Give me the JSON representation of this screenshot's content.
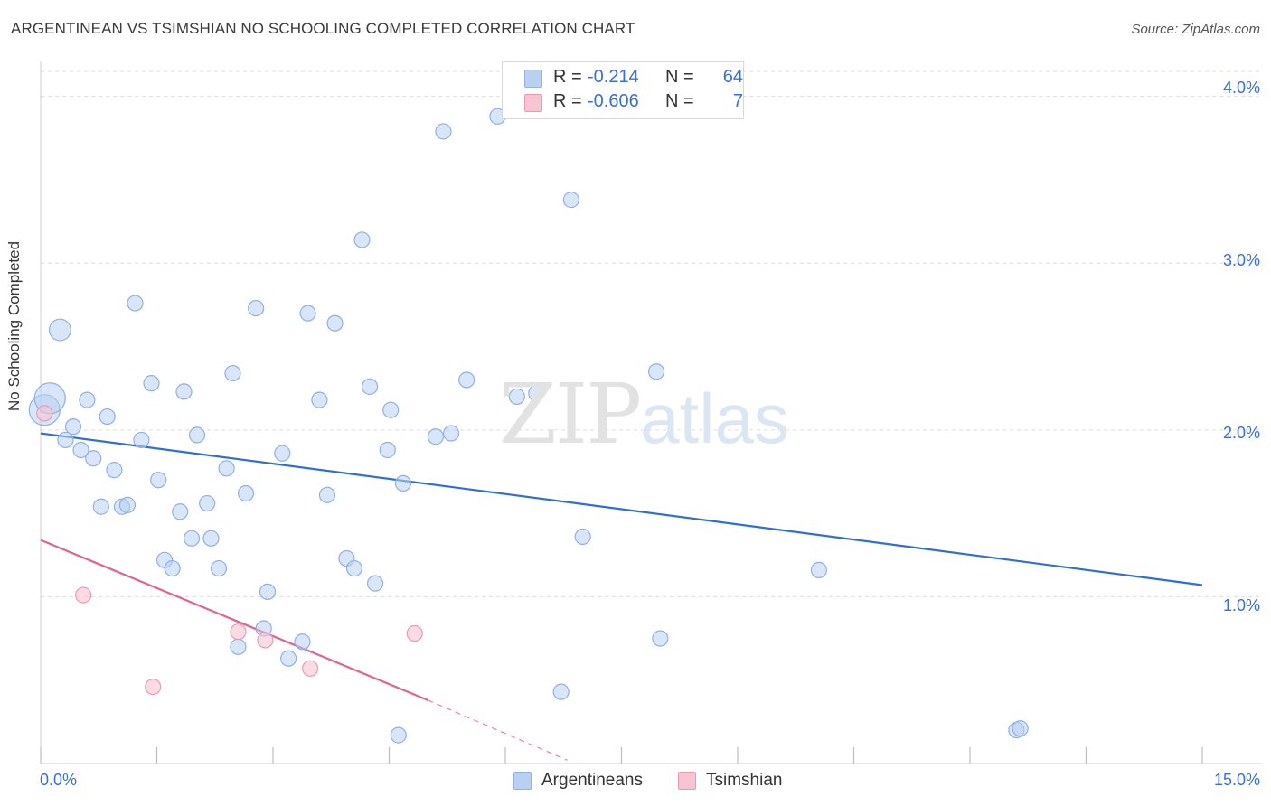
{
  "title": "ARGENTINEAN VS TSIMSHIAN NO SCHOOLING COMPLETED CORRELATION CHART",
  "source": "Source: ZipAtlas.com",
  "watermark": {
    "zip": "ZIP",
    "atlas": "atlas"
  },
  "colors": {
    "blue_fill": "#b9d0f2",
    "blue_stroke": "#8fb1e4",
    "blue_line": "#2e6fd6",
    "pink_fill": "#f8c4d4",
    "pink_stroke": "#ec9ab4",
    "pink_line": "#e0648f",
    "grid": "#dcdcdc",
    "axis_text": "#3a6fd8"
  },
  "legend": {
    "rows": [
      {
        "r_label": "R =",
        "r_value": "-0.214",
        "n_label": "N =",
        "n_value": "64"
      },
      {
        "r_label": "R =",
        "r_value": "-0.606",
        "n_label": "N =",
        "n_value": "7"
      }
    ]
  },
  "bottom_legend": [
    {
      "label": "Argentineans"
    },
    {
      "label": "Tsimshian"
    }
  ],
  "axis": {
    "x_min_label": "0.0%",
    "x_max_label": "15.0%",
    "y_label": "No Schooling Completed",
    "y_tick_labels": [
      "1.0%",
      "2.0%",
      "3.0%",
      "4.0%"
    ]
  },
  "chart_data": {
    "type": "scatter",
    "title": "ARGENTINEAN VS TSIMSHIAN NO SCHOOLING COMPLETED CORRELATION CHART",
    "xlabel": "",
    "ylabel": "No Schooling Completed",
    "xlim": [
      0,
      15
    ],
    "ylim": [
      0,
      4.15
    ],
    "y_ticks": [
      1,
      2,
      3,
      4
    ],
    "series": [
      {
        "name": "Argentineans",
        "r": -0.214,
        "n": 64,
        "trend": {
          "x0": 0,
          "y0": 1.98,
          "x1": 15,
          "y1": 1.07
        },
        "points": [
          {
            "x": 0.05,
            "y": 2.12,
            "s": 2
          },
          {
            "x": 0.12,
            "y": 2.19,
            "s": 2
          },
          {
            "x": 0.25,
            "y": 2.6,
            "s": 1.4
          },
          {
            "x": 0.32,
            "y": 1.94,
            "s": 1
          },
          {
            "x": 0.42,
            "y": 2.02,
            "s": 1
          },
          {
            "x": 0.52,
            "y": 1.88,
            "s": 1
          },
          {
            "x": 0.6,
            "y": 2.18,
            "s": 1
          },
          {
            "x": 0.68,
            "y": 1.83,
            "s": 1
          },
          {
            "x": 0.78,
            "y": 1.54,
            "s": 1
          },
          {
            "x": 0.86,
            "y": 2.08,
            "s": 1
          },
          {
            "x": 0.95,
            "y": 1.76,
            "s": 1
          },
          {
            "x": 1.05,
            "y": 1.54,
            "s": 1
          },
          {
            "x": 1.12,
            "y": 1.55,
            "s": 1
          },
          {
            "x": 1.22,
            "y": 2.76,
            "s": 1
          },
          {
            "x": 1.3,
            "y": 1.94,
            "s": 1
          },
          {
            "x": 1.43,
            "y": 2.28,
            "s": 1
          },
          {
            "x": 1.52,
            "y": 1.7,
            "s": 1
          },
          {
            "x": 1.6,
            "y": 1.22,
            "s": 1
          },
          {
            "x": 1.7,
            "y": 1.17,
            "s": 1
          },
          {
            "x": 1.8,
            "y": 1.51,
            "s": 1
          },
          {
            "x": 1.85,
            "y": 2.23,
            "s": 1
          },
          {
            "x": 1.95,
            "y": 1.35,
            "s": 1
          },
          {
            "x": 2.02,
            "y": 1.97,
            "s": 1
          },
          {
            "x": 2.15,
            "y": 1.56,
            "s": 1
          },
          {
            "x": 2.2,
            "y": 1.35,
            "s": 1
          },
          {
            "x": 2.3,
            "y": 1.17,
            "s": 1
          },
          {
            "x": 2.4,
            "y": 1.77,
            "s": 1
          },
          {
            "x": 2.48,
            "y": 2.34,
            "s": 1
          },
          {
            "x": 2.55,
            "y": 0.7,
            "s": 1
          },
          {
            "x": 2.65,
            "y": 1.62,
            "s": 1
          },
          {
            "x": 2.78,
            "y": 2.73,
            "s": 1
          },
          {
            "x": 2.88,
            "y": 0.81,
            "s": 1
          },
          {
            "x": 2.93,
            "y": 1.03,
            "s": 1
          },
          {
            "x": 3.12,
            "y": 1.86,
            "s": 1
          },
          {
            "x": 3.2,
            "y": 0.63,
            "s": 1
          },
          {
            "x": 3.38,
            "y": 0.73,
            "s": 1
          },
          {
            "x": 3.45,
            "y": 2.7,
            "s": 1
          },
          {
            "x": 3.6,
            "y": 2.18,
            "s": 1
          },
          {
            "x": 3.7,
            "y": 1.61,
            "s": 1
          },
          {
            "x": 3.8,
            "y": 2.64,
            "s": 1
          },
          {
            "x": 3.95,
            "y": 1.23,
            "s": 1
          },
          {
            "x": 4.05,
            "y": 1.17,
            "s": 1
          },
          {
            "x": 4.15,
            "y": 3.14,
            "s": 1
          },
          {
            "x": 4.25,
            "y": 2.26,
            "s": 1
          },
          {
            "x": 4.32,
            "y": 1.08,
            "s": 1
          },
          {
            "x": 4.48,
            "y": 1.88,
            "s": 1
          },
          {
            "x": 4.52,
            "y": 2.12,
            "s": 1
          },
          {
            "x": 4.62,
            "y": 0.17,
            "s": 1
          },
          {
            "x": 4.68,
            "y": 1.68,
            "s": 1
          },
          {
            "x": 5.1,
            "y": 1.96,
            "s": 1
          },
          {
            "x": 5.2,
            "y": 3.79,
            "s": 1
          },
          {
            "x": 5.3,
            "y": 1.98,
            "s": 1
          },
          {
            "x": 5.5,
            "y": 2.3,
            "s": 1
          },
          {
            "x": 5.9,
            "y": 3.88,
            "s": 1
          },
          {
            "x": 6.15,
            "y": 2.2,
            "s": 1
          },
          {
            "x": 6.4,
            "y": 2.22,
            "s": 1
          },
          {
            "x": 6.72,
            "y": 0.43,
            "s": 1
          },
          {
            "x": 6.85,
            "y": 3.38,
            "s": 1
          },
          {
            "x": 7.0,
            "y": 1.36,
            "s": 1
          },
          {
            "x": 7.95,
            "y": 2.35,
            "s": 1
          },
          {
            "x": 8.0,
            "y": 0.75,
            "s": 1
          },
          {
            "x": 10.05,
            "y": 1.16,
            "s": 1
          },
          {
            "x": 12.6,
            "y": 0.2,
            "s": 1
          },
          {
            "x": 12.65,
            "y": 0.21,
            "s": 1
          }
        ]
      },
      {
        "name": "Tsimshian",
        "r": -0.606,
        "n": 7,
        "trend": {
          "x0": 0,
          "y0": 1.34,
          "x1": 5.0,
          "y1": 0.38,
          "x_dash_end": 6.8,
          "y_dash_end": 0.02
        },
        "points": [
          {
            "x": 0.05,
            "y": 2.1,
            "s": 1
          },
          {
            "x": 0.55,
            "y": 1.01,
            "s": 1
          },
          {
            "x": 1.45,
            "y": 0.46,
            "s": 1
          },
          {
            "x": 2.55,
            "y": 0.79,
            "s": 1
          },
          {
            "x": 2.9,
            "y": 0.74,
            "s": 1
          },
          {
            "x": 3.48,
            "y": 0.57,
            "s": 1
          },
          {
            "x": 4.83,
            "y": 0.78,
            "s": 1
          }
        ]
      }
    ]
  }
}
